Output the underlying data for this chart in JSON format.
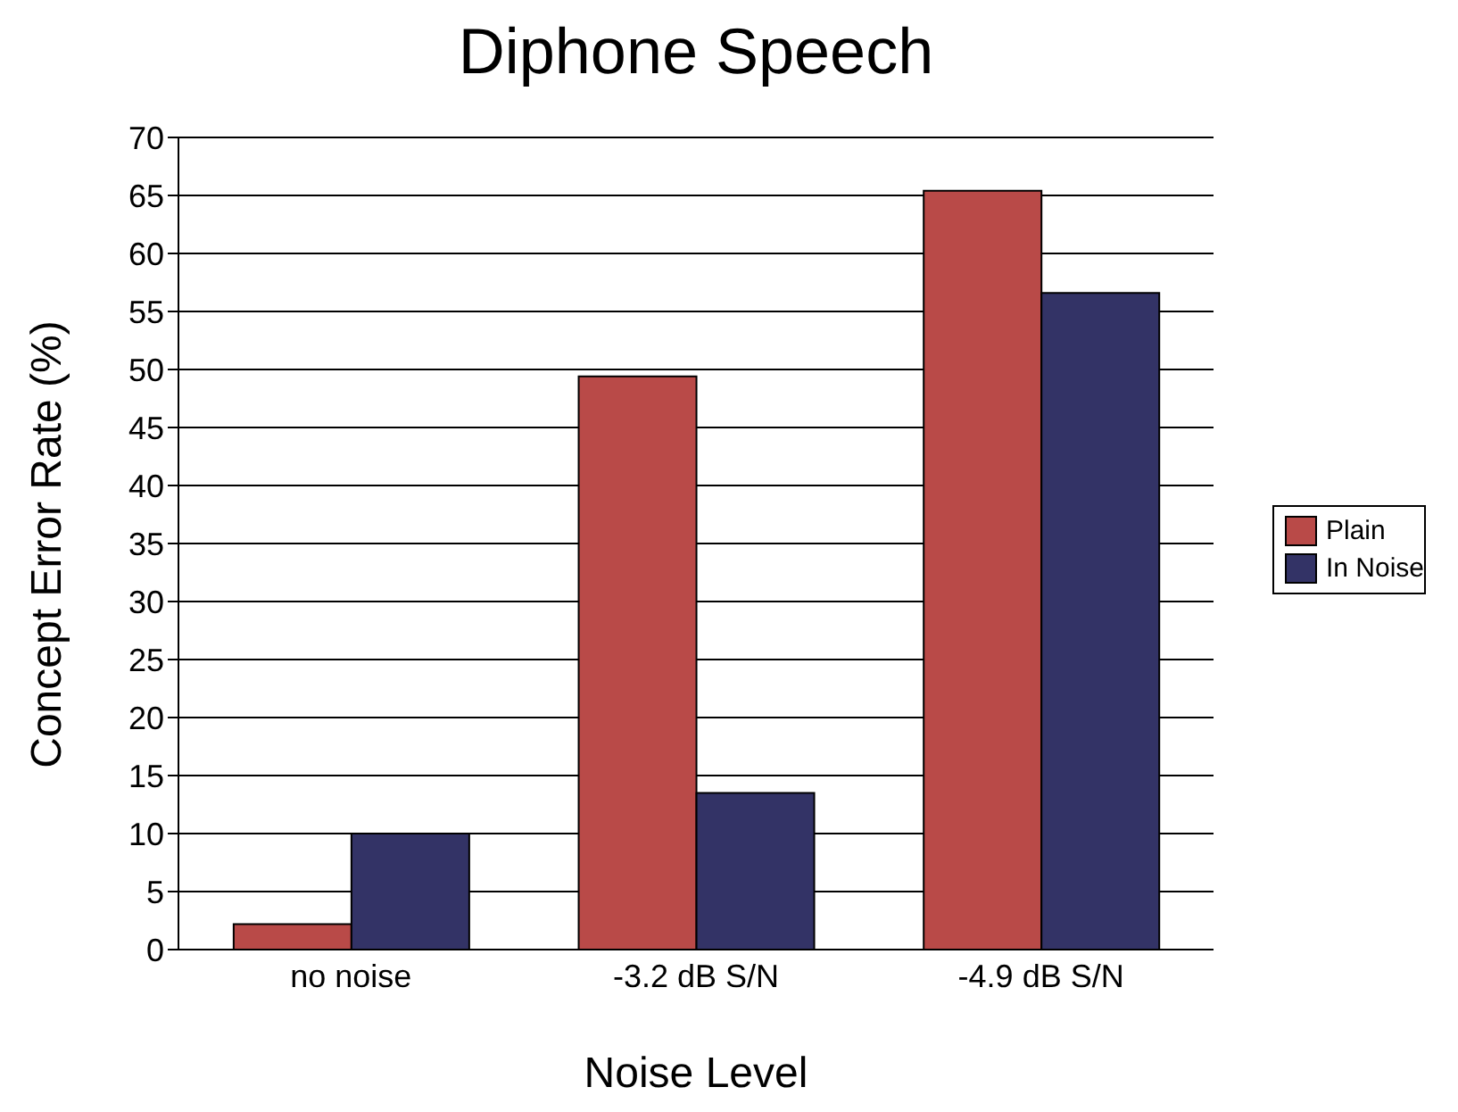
{
  "chart_data": {
    "type": "bar",
    "title": "Diphone Speech",
    "xlabel": "Noise Level",
    "ylabel": "Concept Error Rate (%)",
    "categories": [
      "no noise",
      "-3.2 dB S/N",
      "-4.9 dB S/N"
    ],
    "series": [
      {
        "name": "Plain",
        "color": "#b94a48",
        "values": [
          2.2,
          49.4,
          65.4
        ]
      },
      {
        "name": "In Noise",
        "color": "#333366",
        "values": [
          10,
          13.5,
          56.6
        ]
      }
    ],
    "ylim": [
      0,
      70
    ],
    "yticks": [
      0,
      5,
      10,
      15,
      20,
      25,
      30,
      35,
      40,
      45,
      50,
      55,
      60,
      65,
      70
    ],
    "grid": "y",
    "legend": "right"
  }
}
